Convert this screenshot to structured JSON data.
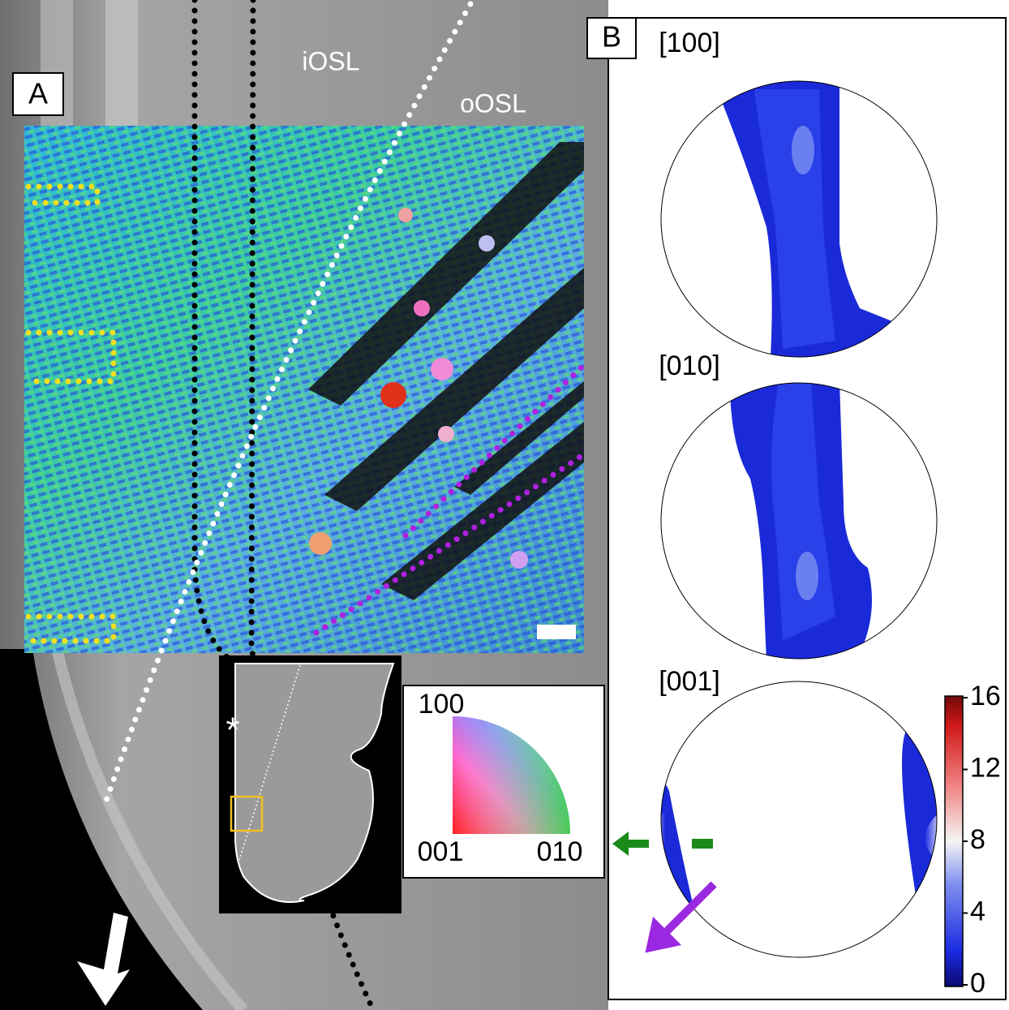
{
  "panel_a": {
    "label": "A",
    "zone_labels": [
      "iOSL",
      "oOSL"
    ],
    "asterisk": "*",
    "ipf_legend": {
      "top": "100",
      "bottom_left": "001",
      "bottom_right": "010"
    }
  },
  "panel_b": {
    "label": "B",
    "pole_figures": [
      "[100]",
      "[010]",
      "[001]"
    ],
    "colorbar": {
      "range": [
        0,
        16
      ],
      "ticks": [
        0,
        4,
        8,
        12,
        16
      ]
    }
  }
}
